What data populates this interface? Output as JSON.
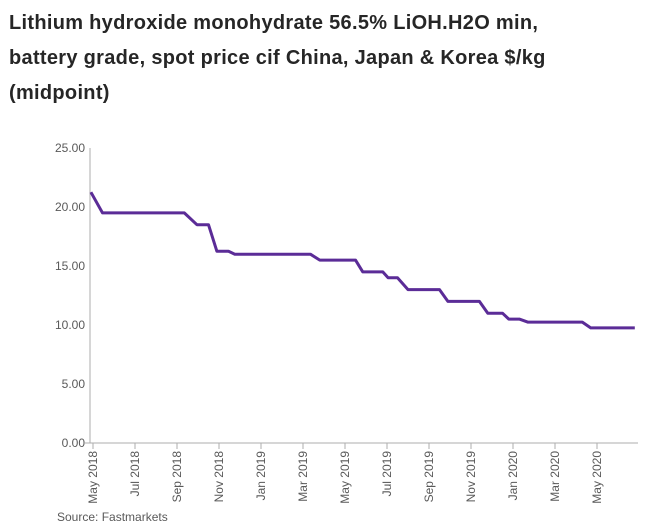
{
  "title_lines": [
    "Lithium hydroxide monohydrate 56.5% LiOH.H2O min,",
    "battery grade, spot price cif China, Japan & Korea $/kg",
    "(midpoint)"
  ],
  "source": "Source: Fastmarkets",
  "colors": {
    "line": "#5B2C97",
    "axis": "#ADADAD",
    "tick_label": "#595959",
    "title": "#262626",
    "background": "#FFFFFF"
  },
  "chart_data": {
    "type": "line",
    "title": "Lithium hydroxide monohydrate 56.5% LiOH.H2O min, battery grade, spot price cif China, Japan & Korea $/kg (midpoint)",
    "xlabel": "",
    "ylabel": "$/kg",
    "ylim": [
      0,
      25
    ],
    "grid": false,
    "legend_position": "none",
    "x_unit": "months_since_may_2018",
    "start_month": "2018-05",
    "end_month": "2020-06",
    "y_ticks": [
      {
        "value": 25,
        "label": "25.00"
      },
      {
        "value": 20,
        "label": "20.00"
      },
      {
        "value": 15,
        "label": "15.00"
      },
      {
        "value": 10,
        "label": "10.00"
      },
      {
        "value": 5,
        "label": "5.00"
      },
      {
        "value": 0,
        "label": "0.00"
      }
    ],
    "x_tick_labels": [
      "May 2018",
      "Jul 2018",
      "Sep 2018",
      "Nov 2018",
      "Jan 2019",
      "Mar 2019",
      "May 2019",
      "Jul 2019",
      "Sep 2019",
      "Nov 2019",
      "Jan 2020",
      "Mar 2020",
      "May 2020"
    ],
    "series": [
      {
        "name": "Lithium hydroxide monohydrate spot price midpoint ($/kg)",
        "color": "#5B2C97",
        "points": [
          [
            -0.1,
            21.25
          ],
          [
            0.45,
            19.5
          ],
          [
            4.35,
            19.5
          ],
          [
            4.95,
            18.5
          ],
          [
            5.5,
            18.5
          ],
          [
            5.9,
            16.25
          ],
          [
            6.45,
            16.25
          ],
          [
            6.75,
            16.0
          ],
          [
            10.35,
            16.0
          ],
          [
            10.8,
            15.5
          ],
          [
            12.5,
            15.5
          ],
          [
            12.85,
            14.5
          ],
          [
            13.8,
            14.5
          ],
          [
            14.05,
            14.0
          ],
          [
            14.5,
            14.0
          ],
          [
            15.0,
            13.0
          ],
          [
            16.5,
            13.0
          ],
          [
            16.9,
            12.0
          ],
          [
            18.4,
            12.0
          ],
          [
            18.8,
            11.0
          ],
          [
            19.5,
            11.0
          ],
          [
            19.8,
            10.5
          ],
          [
            20.3,
            10.5
          ],
          [
            20.7,
            10.25
          ],
          [
            23.3,
            10.25
          ],
          [
            23.7,
            9.75
          ],
          [
            25.8,
            9.75
          ]
        ]
      }
    ]
  }
}
